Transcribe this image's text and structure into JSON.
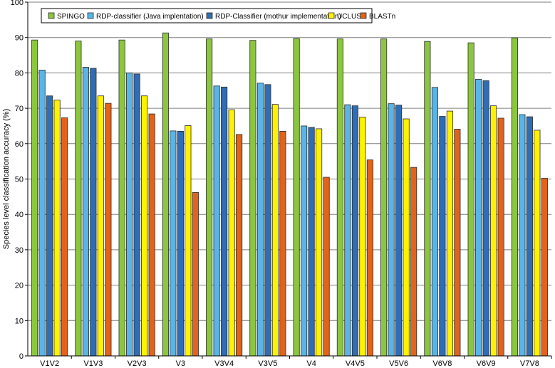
{
  "chart_data": {
    "type": "bar",
    "title": "",
    "xlabel": "",
    "ylabel": "Species level classification accuracy (%)",
    "ylim": [
      0,
      100
    ],
    "ytick_step": 10,
    "grid": true,
    "legend_position": "top",
    "categories": [
      "V1V2",
      "V1V3",
      "V2V3",
      "V3",
      "V3V4",
      "V3V5",
      "V4",
      "V4V5",
      "V5V6",
      "V6V8",
      "V6V9",
      "V7V8"
    ],
    "series": [
      {
        "name": "SPINGO",
        "color": "#8CC63F",
        "values": [
          89.3,
          89.0,
          89.3,
          91.3,
          89.6,
          89.2,
          89.7,
          89.6,
          89.6,
          88.9,
          88.5,
          89.9
        ]
      },
      {
        "name": "RDP-classifier (Java implentation)",
        "color": "#5AB4E6",
        "values": [
          80.8,
          81.6,
          80.0,
          63.6,
          76.3,
          77.1,
          65.0,
          71.0,
          71.3,
          75.9,
          78.2,
          68.2
        ]
      },
      {
        "name": "RDP-Classifier (mothur implementation)",
        "color": "#2F6DB5",
        "values": [
          73.5,
          81.3,
          79.7,
          63.5,
          76.0,
          76.7,
          64.6,
          70.7,
          70.9,
          67.7,
          77.8,
          67.6
        ]
      },
      {
        "name": "UCLUST",
        "color": "#FFF200",
        "values": [
          72.3,
          73.5,
          73.5,
          65.1,
          69.6,
          71.1,
          64.2,
          67.5,
          67.0,
          69.2,
          70.7,
          63.8
        ]
      },
      {
        "name": "BLASTn",
        "color": "#E2631A",
        "values": [
          67.3,
          71.4,
          68.4,
          46.2,
          62.6,
          63.5,
          50.5,
          55.4,
          53.3,
          64.1,
          67.2,
          50.2
        ]
      }
    ]
  }
}
